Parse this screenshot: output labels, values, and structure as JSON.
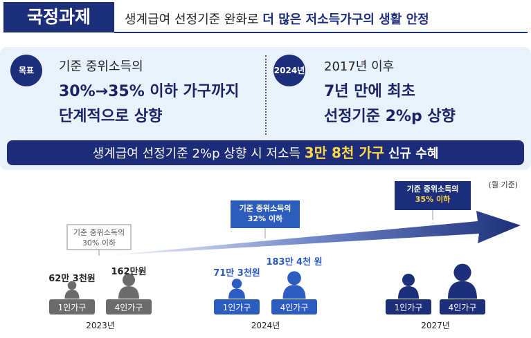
{
  "header": {
    "badge": "국정과제",
    "title": "생계급여 선정기준 완화로",
    "title_emphasis": "더 많은 저소득가구의 생활 안정"
  },
  "goal": {
    "badge": "목표",
    "lines": [
      "기준 중위소득의",
      "30%→35% 이하 가구까지",
      "단계적으로 상향"
    ]
  },
  "milestone": {
    "badge": "2024년",
    "lines": [
      "2017년 이후",
      "7년 만에 최초",
      "선정기준 2%p 상향"
    ]
  },
  "banner": {
    "text": "생계급여 선정기준 2%p 상향 시 저소득",
    "emphasis": "3만 8천 가구",
    "suffix": "신규 수혜"
  },
  "timeline": {
    "note": "(월 기준)",
    "years": [
      {
        "year": "2023년",
        "callout": [
          "기준 중위소득의",
          "30% 이하"
        ],
        "groups": [
          {
            "household": "1인가구",
            "amount": "62만 3천원"
          },
          {
            "household": "4인가구",
            "amount": "162만원"
          }
        ]
      },
      {
        "year": "2024년",
        "callout": [
          "기준 중위소득의",
          "32% 이하"
        ],
        "groups": [
          {
            "household": "1인가구",
            "amount": "71만 3천원"
          },
          {
            "household": "4인가구",
            "amount": "183만 4천 원"
          }
        ]
      },
      {
        "year": "2027년",
        "callout": [
          "기준 중위소득의",
          "35% 이하"
        ],
        "groups": [
          {
            "household": "1인가구"
          },
          {
            "household": "4인가구"
          }
        ]
      }
    ]
  }
}
